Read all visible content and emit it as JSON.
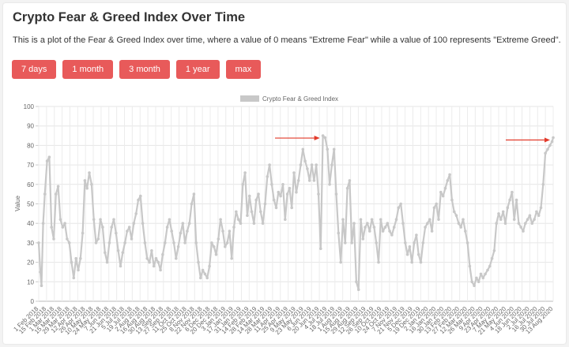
{
  "page": {
    "title": "Crypto Fear & Greed Index Over Time",
    "description": "This is a plot of the Fear & Greed Index over time, where a value of 0 means \"Extreme Fear\" while a value of 100 represents \"Extreme Greed\".",
    "buttons": [
      "7 days",
      "1 month",
      "3 month",
      "1 year",
      "max"
    ],
    "button_color": "#e85a5a"
  },
  "chart_data": {
    "type": "line",
    "legend": "Crypto Fear & Greed Index",
    "legend_position": "top-center",
    "ylabel": "Value",
    "xlabel": "",
    "ylim": [
      0,
      100
    ],
    "yticks": [
      0,
      10,
      20,
      30,
      40,
      50,
      60,
      70,
      80,
      90,
      100
    ],
    "grid": true,
    "line_color": "#c8c8c8",
    "xticks": [
      "1 Feb 2018",
      "15 Feb 2018",
      "1 Mar 2018",
      "15 Mar 2018",
      "29 Mar 2018",
      "12 Apr 2018",
      "26 Apr 2018",
      "10 May 2018",
      "24 May 2018",
      "7 Jun 2018",
      "21 Jun 2018",
      "5 Jul 2018",
      "19 Jul 2018",
      "2 Aug 2018",
      "16 Aug 2018",
      "30 Aug 2018",
      "13 Sep 2018",
      "27 Sep 2018",
      "11 Oct 2018",
      "25 Oct 2018",
      "8 Nov 2018",
      "22 Nov 2018",
      "6 Dec 2018",
      "20 Dec 2018",
      "3 Jan 2019",
      "17 Jan 2019",
      "31 Jan 2019",
      "14 Feb 2019",
      "28 Feb 2019",
      "14 Mar 2019",
      "28 Mar 2019",
      "11 Apr 2019",
      "25 Apr 2019",
      "9 May 2019",
      "23 May 2019",
      "6 Jun 2019",
      "20 Jun 2019",
      "4 Jul 2019",
      "18 Jul 2019",
      "1 Aug 2019",
      "15 Aug 2019",
      "29 Aug 2019",
      "12 Sep 2019",
      "26 Sep 2019",
      "10 Oct 2019",
      "24 Oct 2019",
      "7 Nov 2019",
      "21 Nov 2019",
      "5 Dec 2019",
      "19 Dec 2019",
      "2 Jan 2020",
      "16 Jan 2020",
      "30 Jan 2020",
      "13 Feb 2020",
      "27 Feb 2020",
      "12 Mar 2020",
      "26 Mar 2020",
      "9 Apr 2020",
      "23 Apr 2020",
      "7 May 2020",
      "21 May 2020",
      "4 Jun 2020",
      "18 Jun 2020",
      "2 Jul 2020",
      "16 Jul 2020",
      "30 Jul 2020",
      "13 Aug 2020"
    ],
    "x": [
      "2018-02-01",
      "2018-02-04",
      "2018-02-06",
      "2018-02-09",
      "2018-02-12",
      "2018-02-16",
      "2018-02-20",
      "2018-02-24",
      "2018-02-28",
      "2018-03-04",
      "2018-03-08",
      "2018-03-12",
      "2018-03-16",
      "2018-03-20",
      "2018-03-24",
      "2018-03-28",
      "2018-04-01",
      "2018-04-05",
      "2018-04-09",
      "2018-04-13",
      "2018-04-17",
      "2018-04-21",
      "2018-04-25",
      "2018-04-29",
      "2018-05-03",
      "2018-05-07",
      "2018-05-11",
      "2018-05-15",
      "2018-05-19",
      "2018-05-23",
      "2018-05-27",
      "2018-05-31",
      "2018-06-04",
      "2018-06-08",
      "2018-06-12",
      "2018-06-16",
      "2018-06-20",
      "2018-06-24",
      "2018-06-28",
      "2018-07-02",
      "2018-07-06",
      "2018-07-10",
      "2018-07-14",
      "2018-07-18",
      "2018-07-22",
      "2018-07-26",
      "2018-07-30",
      "2018-08-03",
      "2018-08-07",
      "2018-08-11",
      "2018-08-15",
      "2018-08-19",
      "2018-08-23",
      "2018-08-27",
      "2018-08-31",
      "2018-09-04",
      "2018-09-08",
      "2018-09-12",
      "2018-09-16",
      "2018-09-20",
      "2018-09-24",
      "2018-09-28",
      "2018-10-02",
      "2018-10-06",
      "2018-10-10",
      "2018-10-14",
      "2018-10-18",
      "2018-10-22",
      "2018-10-26",
      "2018-10-30",
      "2018-11-03",
      "2018-11-07",
      "2018-11-11",
      "2018-11-15",
      "2018-11-19",
      "2018-11-23",
      "2018-11-27",
      "2018-12-01",
      "2018-12-05",
      "2018-12-09",
      "2018-12-13",
      "2018-12-17",
      "2018-12-21",
      "2018-12-25",
      "2018-12-29",
      "2019-01-02",
      "2019-01-06",
      "2019-01-10",
      "2019-01-14",
      "2019-01-18",
      "2019-01-22",
      "2019-01-26",
      "2019-01-30",
      "2019-02-03",
      "2019-02-07",
      "2019-02-11",
      "2019-02-15",
      "2019-02-19",
      "2019-02-23",
      "2019-02-27",
      "2019-03-03",
      "2019-03-07",
      "2019-03-11",
      "2019-03-15",
      "2019-03-19",
      "2019-03-23",
      "2019-03-27",
      "2019-03-31",
      "2019-04-04",
      "2019-04-08",
      "2019-04-12",
      "2019-04-16",
      "2019-04-20",
      "2019-04-24",
      "2019-04-28",
      "2019-05-02",
      "2019-05-06",
      "2019-05-10",
      "2019-05-14",
      "2019-05-18",
      "2019-05-22",
      "2019-05-26",
      "2019-05-30",
      "2019-06-03",
      "2019-06-07",
      "2019-06-11",
      "2019-06-15",
      "2019-06-19",
      "2019-06-23",
      "2019-06-27",
      "2019-07-01",
      "2019-07-05",
      "2019-07-09",
      "2019-07-13",
      "2019-07-17",
      "2019-07-21",
      "2019-07-25",
      "2019-07-29",
      "2019-08-02",
      "2019-08-06",
      "2019-08-10",
      "2019-08-14",
      "2019-08-18",
      "2019-08-22",
      "2019-08-26",
      "2019-08-30",
      "2019-09-03",
      "2019-09-07",
      "2019-09-11",
      "2019-09-15",
      "2019-09-19",
      "2019-09-23",
      "2019-09-27",
      "2019-10-01",
      "2019-10-05",
      "2019-10-09",
      "2019-10-13",
      "2019-10-17",
      "2019-10-21",
      "2019-10-25",
      "2019-10-29",
      "2019-11-02",
      "2019-11-06",
      "2019-11-10",
      "2019-11-14",
      "2019-11-18",
      "2019-11-22",
      "2019-11-26",
      "2019-11-30",
      "2019-12-04",
      "2019-12-08",
      "2019-12-12",
      "2019-12-16",
      "2019-12-20",
      "2019-12-24",
      "2019-12-28",
      "2020-01-01",
      "2020-01-05",
      "2020-01-09",
      "2020-01-13",
      "2020-01-17",
      "2020-01-21",
      "2020-01-25",
      "2020-01-29",
      "2020-02-02",
      "2020-02-06",
      "2020-02-10",
      "2020-02-14",
      "2020-02-18",
      "2020-02-22",
      "2020-02-26",
      "2020-03-01",
      "2020-03-05",
      "2020-03-09",
      "2020-03-13",
      "2020-03-17",
      "2020-03-21",
      "2020-03-25",
      "2020-03-29",
      "2020-04-02",
      "2020-04-06",
      "2020-04-10",
      "2020-04-14",
      "2020-04-18",
      "2020-04-22",
      "2020-04-26",
      "2020-04-30",
      "2020-05-04",
      "2020-05-08",
      "2020-05-12",
      "2020-05-16",
      "2020-05-20",
      "2020-05-24",
      "2020-05-28",
      "2020-06-01",
      "2020-06-05",
      "2020-06-09",
      "2020-06-13",
      "2020-06-17",
      "2020-06-21",
      "2020-06-25",
      "2020-06-29",
      "2020-07-03",
      "2020-07-07",
      "2020-07-11",
      "2020-07-15",
      "2020-07-19",
      "2020-07-23",
      "2020-07-27",
      "2020-07-31",
      "2020-08-04",
      "2020-08-08",
      "2020-08-12",
      "2020-08-14"
    ],
    "values": [
      30,
      15,
      8,
      40,
      55,
      72,
      74,
      38,
      32,
      55,
      59,
      42,
      38,
      40,
      32,
      30,
      20,
      12,
      22,
      16,
      22,
      35,
      62,
      58,
      66,
      60,
      42,
      30,
      32,
      42,
      38,
      25,
      20,
      30,
      38,
      42,
      35,
      26,
      18,
      25,
      30,
      36,
      38,
      32,
      40,
      45,
      52,
      54,
      40,
      30,
      22,
      20,
      26,
      18,
      22,
      20,
      16,
      24,
      30,
      38,
      42,
      36,
      30,
      22,
      28,
      35,
      40,
      30,
      36,
      40,
      50,
      55,
      30,
      20,
      12,
      16,
      14,
      12,
      18,
      30,
      28,
      24,
      32,
      42,
      36,
      28,
      30,
      36,
      22,
      38,
      46,
      42,
      40,
      60,
      66,
      44,
      54,
      46,
      40,
      52,
      55,
      46,
      40,
      50,
      64,
      70,
      60,
      52,
      48,
      56,
      54,
      60,
      42,
      55,
      58,
      48,
      66,
      56,
      62,
      70,
      78,
      72,
      68,
      62,
      70,
      62,
      70,
      55,
      27,
      85,
      84,
      78,
      60,
      70,
      78,
      55,
      35,
      20,
      42,
      30,
      58,
      62,
      30,
      40,
      10,
      6,
      42,
      32,
      38,
      40,
      36,
      42,
      38,
      30,
      20,
      42,
      36,
      38,
      40,
      36,
      34,
      38,
      42,
      48,
      50,
      40,
      30,
      24,
      28,
      20,
      30,
      34,
      24,
      20,
      30,
      38,
      40,
      42,
      36,
      48,
      50,
      42,
      56,
      54,
      58,
      62,
      65,
      52,
      46,
      44,
      40,
      38,
      42,
      36,
      30,
      18,
      10,
      8,
      12,
      10,
      14,
      12,
      14,
      16,
      18,
      22,
      26,
      40,
      45,
      42,
      46,
      40,
      48,
      52,
      56,
      42,
      52,
      40,
      38,
      36,
      40,
      42,
      44,
      40,
      42,
      46,
      44,
      48,
      60,
      76,
      78,
      80,
      82,
      84
    ],
    "annotations": [
      {
        "type": "arrow",
        "points_to": "2019-06-27",
        "direction": "right",
        "color": "#e23a2a"
      },
      {
        "type": "arrow",
        "points_to": "2020-08-14",
        "direction": "right",
        "color": "#e23a2a"
      }
    ]
  }
}
